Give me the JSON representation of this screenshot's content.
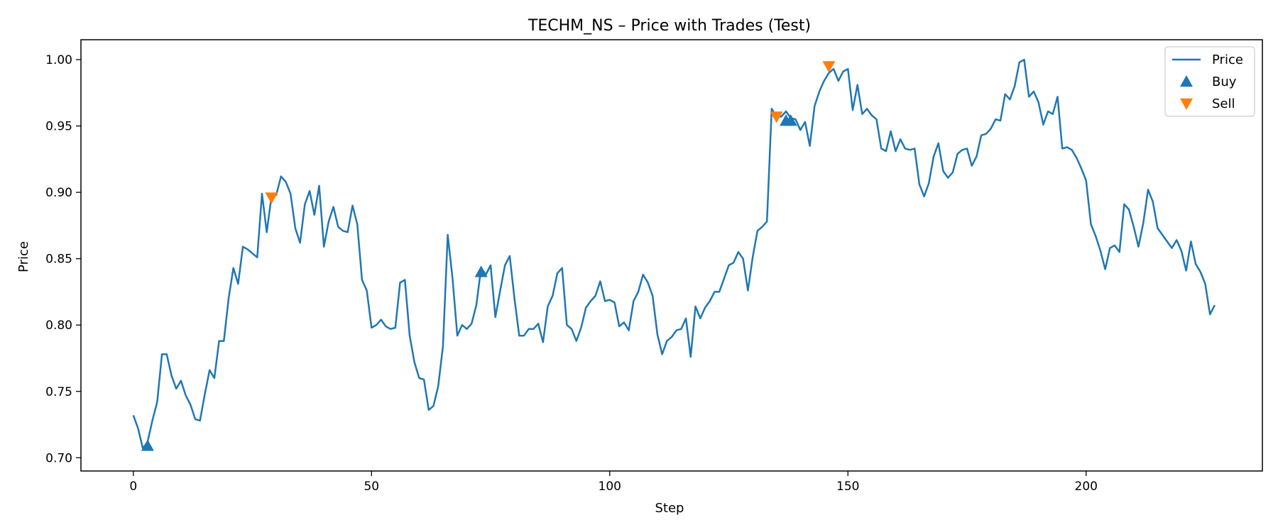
{
  "chart_data": {
    "type": "line",
    "title": "TECHM_NS – Price with Trades (Test)",
    "xlabel": "Step",
    "ylabel": "Price",
    "xlim": [
      -11,
      237
    ],
    "ylim": [
      0.69,
      1.015
    ],
    "xticks": [
      0,
      50,
      100,
      150,
      200
    ],
    "yticks": [
      0.7,
      0.75,
      0.8,
      0.85,
      0.9,
      0.95,
      1.0
    ],
    "ytick_labels": [
      "0.70",
      "0.75",
      "0.80",
      "0.85",
      "0.90",
      "0.95",
      "1.00"
    ],
    "grid": false,
    "legend_position": "top-right",
    "colors": {
      "price": "#1f77b4",
      "buy": "#1f77b4",
      "sell": "#ff7f0e"
    },
    "series": [
      {
        "name": "Price",
        "kind": "line",
        "y": [
          0.732,
          0.722,
          0.707,
          0.712,
          0.728,
          0.742,
          0.778,
          0.778,
          0.762,
          0.752,
          0.758,
          0.747,
          0.74,
          0.729,
          0.728,
          0.748,
          0.766,
          0.76,
          0.788,
          0.788,
          0.82,
          0.843,
          0.831,
          0.859,
          0.857,
          0.854,
          0.851,
          0.899,
          0.87,
          0.897,
          0.898,
          0.912,
          0.908,
          0.899,
          0.873,
          0.862,
          0.891,
          0.901,
          0.883,
          0.905,
          0.859,
          0.878,
          0.889,
          0.874,
          0.871,
          0.87,
          0.89,
          0.876,
          0.834,
          0.826,
          0.798,
          0.8,
          0.804,
          0.799,
          0.797,
          0.798,
          0.832,
          0.834,
          0.792,
          0.772,
          0.76,
          0.759,
          0.736,
          0.739,
          0.754,
          0.784,
          0.868,
          0.835,
          0.792,
          0.8,
          0.797,
          0.801,
          0.815,
          0.843,
          0.838,
          0.845,
          0.806,
          0.826,
          0.845,
          0.852,
          0.82,
          0.792,
          0.792,
          0.797,
          0.797,
          0.801,
          0.787,
          0.814,
          0.822,
          0.839,
          0.843,
          0.8,
          0.797,
          0.788,
          0.798,
          0.813,
          0.818,
          0.822,
          0.833,
          0.818,
          0.819,
          0.817,
          0.799,
          0.802,
          0.796,
          0.818,
          0.825,
          0.838,
          0.832,
          0.822,
          0.793,
          0.778,
          0.788,
          0.791,
          0.796,
          0.797,
          0.805,
          0.776,
          0.814,
          0.805,
          0.813,
          0.818,
          0.825,
          0.825,
          0.835,
          0.845,
          0.847,
          0.855,
          0.85,
          0.826,
          0.851,
          0.871,
          0.874,
          0.878,
          0.963,
          0.957,
          0.957,
          0.961,
          0.956,
          0.955,
          0.947,
          0.953,
          0.935,
          0.965,
          0.976,
          0.984,
          0.99,
          0.993,
          0.984,
          0.991,
          0.993,
          0.962,
          0.981,
          0.959,
          0.963,
          0.958,
          0.955,
          0.933,
          0.931,
          0.946,
          0.931,
          0.94,
          0.933,
          0.932,
          0.933,
          0.906,
          0.897,
          0.907,
          0.927,
          0.937,
          0.916,
          0.911,
          0.915,
          0.929,
          0.932,
          0.933,
          0.92,
          0.927,
          0.943,
          0.944,
          0.948,
          0.955,
          0.954,
          0.974,
          0.97,
          0.98,
          0.998,
          1.0,
          0.972,
          0.976,
          0.968,
          0.951,
          0.961,
          0.959,
          0.972,
          0.933,
          0.934,
          0.932,
          0.926,
          0.918,
          0.909,
          0.876,
          0.867,
          0.856,
          0.842,
          0.858,
          0.86,
          0.855,
          0.891,
          0.887,
          0.874,
          0.859,
          0.877,
          0.902,
          0.893,
          0.873,
          0.868,
          0.863,
          0.858,
          0.864,
          0.856,
          0.841,
          0.863,
          0.846,
          0.84,
          0.831,
          0.808,
          0.815
        ]
      },
      {
        "name": "Buy",
        "kind": "scatter",
        "marker": "triangle-up",
        "points": [
          [
            3,
            0.709
          ],
          [
            73,
            0.84
          ],
          [
            137,
            0.954
          ],
          [
            138,
            0.954
          ]
        ]
      },
      {
        "name": "Sell",
        "kind": "scatter",
        "marker": "triangle-down",
        "points": [
          [
            29,
            0.896
          ],
          [
            135,
            0.957
          ],
          [
            146,
            0.995
          ]
        ]
      }
    ]
  }
}
